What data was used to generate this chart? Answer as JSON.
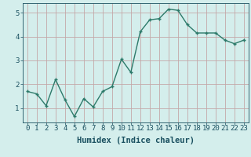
{
  "x": [
    0,
    1,
    2,
    3,
    4,
    5,
    6,
    7,
    8,
    9,
    10,
    11,
    12,
    13,
    14,
    15,
    16,
    17,
    18,
    19,
    20,
    21,
    22,
    23
  ],
  "y": [
    1.7,
    1.6,
    1.1,
    2.2,
    1.35,
    0.65,
    1.4,
    1.05,
    1.7,
    1.9,
    3.05,
    2.5,
    4.2,
    4.7,
    4.75,
    5.15,
    5.1,
    4.5,
    4.15,
    4.15,
    4.15,
    3.85,
    3.7,
    3.85
  ],
  "xlabel": "Humidex (Indice chaleur)",
  "ylim": [
    0.4,
    5.4
  ],
  "xlim": [
    -0.5,
    23.5
  ],
  "yticks": [
    1,
    2,
    3,
    4,
    5
  ],
  "xticks": [
    0,
    1,
    2,
    3,
    4,
    5,
    6,
    7,
    8,
    9,
    10,
    11,
    12,
    13,
    14,
    15,
    16,
    17,
    18,
    19,
    20,
    21,
    22,
    23
  ],
  "line_color": "#2d7a6a",
  "marker_color": "#2d7a6a",
  "bg_color": "#d4eeec",
  "grid_color": "#c4a8a8",
  "xlabel_fontsize": 7.5,
  "tick_fontsize": 6.5,
  "tick_color": "#1a5060",
  "label_color": "#1a5060"
}
